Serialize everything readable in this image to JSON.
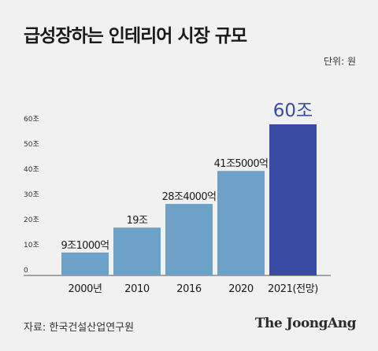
{
  "title": "급성장하는 인테리어 시장 규모",
  "unit_label": "단위: 원",
  "source": "자료: 한국건설산업연구원",
  "brand": "The JoongAng",
  "colors": {
    "bar": "#6ea1c8",
    "bar_highlight": "#3a4ba3",
    "highlight_label": "#3a4ba3",
    "background": "#f1f1f1"
  },
  "chart_data": {
    "type": "bar",
    "categories": [
      "2000년",
      "2010",
      "2016",
      "2020",
      "2021(전망)"
    ],
    "values": [
      9.1,
      19,
      28.4,
      41.5,
      60
    ],
    "value_labels": [
      "9조1000억",
      "19조",
      "28조4000억",
      "41조5000억",
      "60조"
    ],
    "highlight_index": 4,
    "ylim": [
      0,
      60
    ],
    "yticks": [
      0,
      10,
      20,
      30,
      40,
      50,
      60
    ],
    "ytick_labels": [
      "0",
      "10조",
      "20조",
      "30조",
      "40조",
      "50조",
      "60조"
    ],
    "ylabel": "",
    "xlabel": "",
    "grid": false
  }
}
